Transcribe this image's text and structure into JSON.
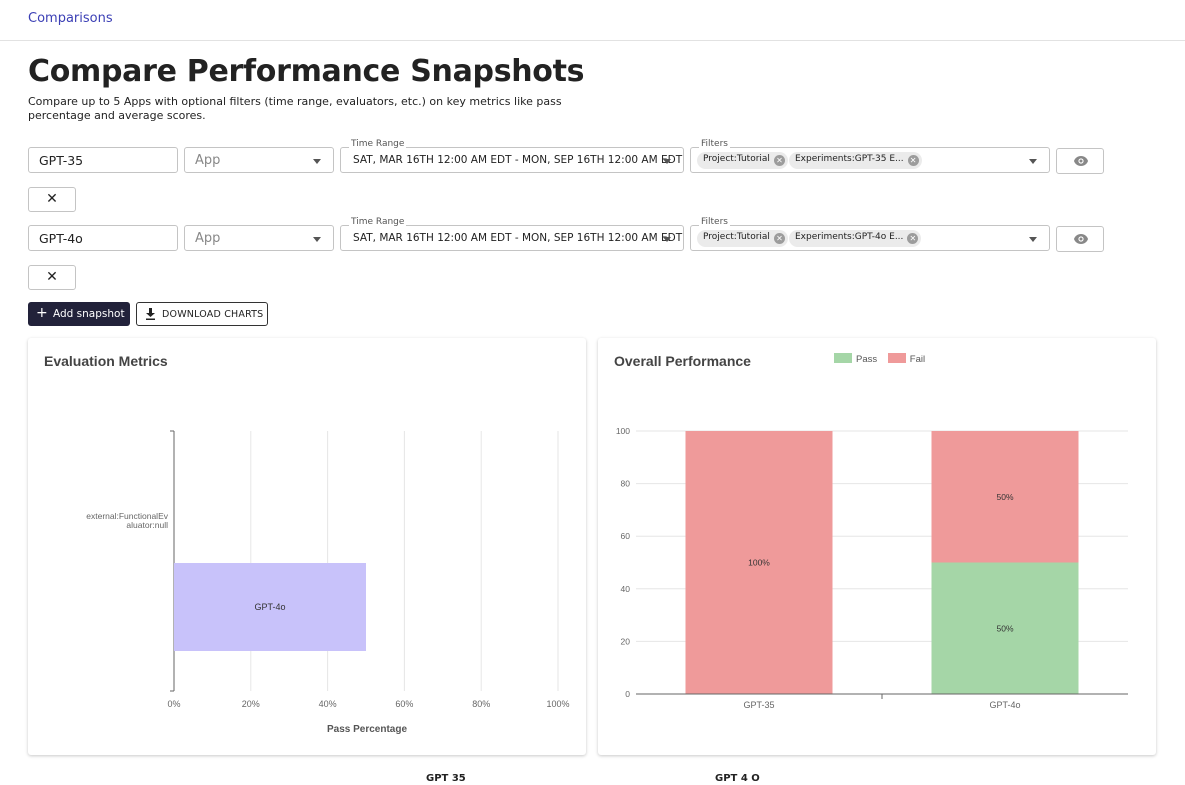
{
  "breadcrumb": "Comparisons",
  "page": {
    "title": "Compare Performance Snapshots",
    "description": "Compare up to 5 Apps with optional filters (time range, evaluators, etc.) on key metrics like pass percentage and average scores."
  },
  "snapshots": [
    {
      "name": "GPT-35",
      "app_placeholder": "App",
      "time_range_label": "Time Range",
      "time_range": "SAT, MAR 16TH 12:00 AM EDT - MON, SEP 16TH 12:00 AM EDT",
      "filters_label": "Filters",
      "filters": [
        "Project:Tutorial",
        "Experiments:GPT-35 E..."
      ],
      "close_label": "✕"
    },
    {
      "name": "GPT-4o",
      "app_placeholder": "App",
      "time_range_label": "Time Range",
      "time_range": "SAT, MAR 16TH 12:00 AM EDT - MON, SEP 16TH 12:00 AM EDT",
      "filters_label": "Filters",
      "filters": [
        "Project:Tutorial",
        "Experiments:GPT-4o E..."
      ],
      "close_label": "✕"
    }
  ],
  "actions": {
    "add_snapshot": "Add snapshot",
    "download_charts": "DOWNLOAD CHARTS"
  },
  "chart_data": [
    {
      "type": "bar",
      "orientation": "horizontal",
      "title": "Evaluation Metrics",
      "categories": [
        "external:FunctionalEvaluator:null"
      ],
      "category_label_lines": [
        "external:FunctionalEv",
        "aluator:null"
      ],
      "series": [
        {
          "name": "GPT-4o",
          "values": [
            50
          ],
          "color": "#c8c2fa"
        }
      ],
      "xlabel": "Pass Percentage",
      "xlim": [
        0,
        100
      ],
      "xticks": [
        "0%",
        "20%",
        "40%",
        "60%",
        "80%",
        "100%"
      ],
      "grid": true
    },
    {
      "type": "bar",
      "stacked": true,
      "title": "Overall Performance",
      "categories": [
        "GPT-35",
        "GPT-4o"
      ],
      "series": [
        {
          "name": "Pass",
          "values": [
            0,
            50
          ],
          "labels": [
            "",
            "50%"
          ],
          "color": "#a5d6a7"
        },
        {
          "name": "Fail",
          "values": [
            100,
            50
          ],
          "labels": [
            "100%",
            "50%"
          ],
          "color": "#ef9a9a"
        }
      ],
      "ylim": [
        0,
        100
      ],
      "yticks": [
        "0",
        "20",
        "40",
        "60",
        "80",
        "100"
      ],
      "legend": "top",
      "grid": true
    }
  ],
  "footer_labels": [
    "GPT 35",
    "GPT 4 O"
  ]
}
